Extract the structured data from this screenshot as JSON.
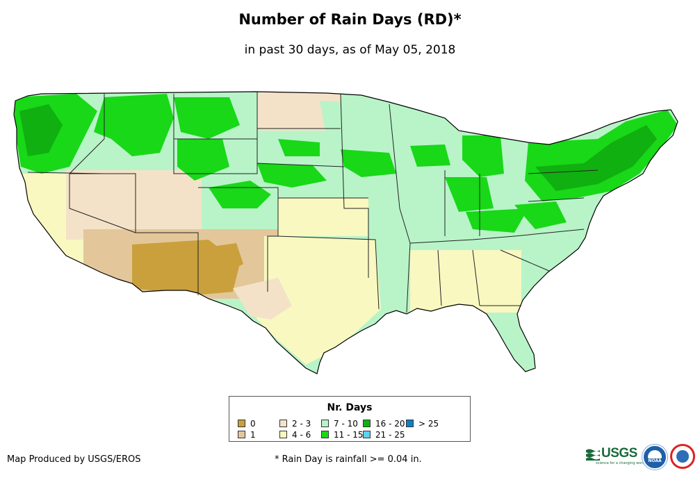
{
  "title": "Number of Rain Days (RD)*",
  "subtitle": "in past 30 days, as of May 05, 2018",
  "legend": {
    "title": "Nr. Days",
    "items": [
      {
        "label": "0",
        "color": "#c9a03c"
      },
      {
        "label": "1",
        "color": "#e3c79a"
      },
      {
        "label": "2 - 3",
        "color": "#f4e2c8"
      },
      {
        "label": "4 - 6",
        "color": "#f8f8c0"
      },
      {
        "label": "7 - 10",
        "color": "#b8f4c8"
      },
      {
        "label": "11 - 15",
        "color": "#18d818"
      },
      {
        "label": "16 - 20",
        "color": "#10b010"
      },
      {
        "label": "21 - 25",
        "color": "#58d4f0"
      },
      {
        "label": "> 25",
        "color": "#1080c0"
      }
    ]
  },
  "producer": "Map Produced by USGS/EROS",
  "footnote": "* Rain Day is rainfall >= 0.04 in.",
  "logos": {
    "usgs_text": "USGS",
    "usgs_tagline": "science for a changing world",
    "noaa_text": "NOAA"
  },
  "map_regions": [
    {
      "name": "pacific-northwest",
      "class": "11 - 15"
    },
    {
      "name": "northern-rockies",
      "class": "11 - 15"
    },
    {
      "name": "northeast",
      "class": "16 - 20"
    },
    {
      "name": "great-lakes",
      "class": "11 - 15"
    },
    {
      "name": "great-plains",
      "class": "7 - 10"
    },
    {
      "name": "midwest",
      "class": "7 - 10"
    },
    {
      "name": "southeast",
      "class": "7 - 10"
    },
    {
      "name": "texas",
      "class": "4 - 6"
    },
    {
      "name": "great-basin",
      "class": "2 - 3"
    },
    {
      "name": "desert-southwest",
      "class": "0"
    },
    {
      "name": "southern-rockies",
      "class": "1"
    }
  ]
}
